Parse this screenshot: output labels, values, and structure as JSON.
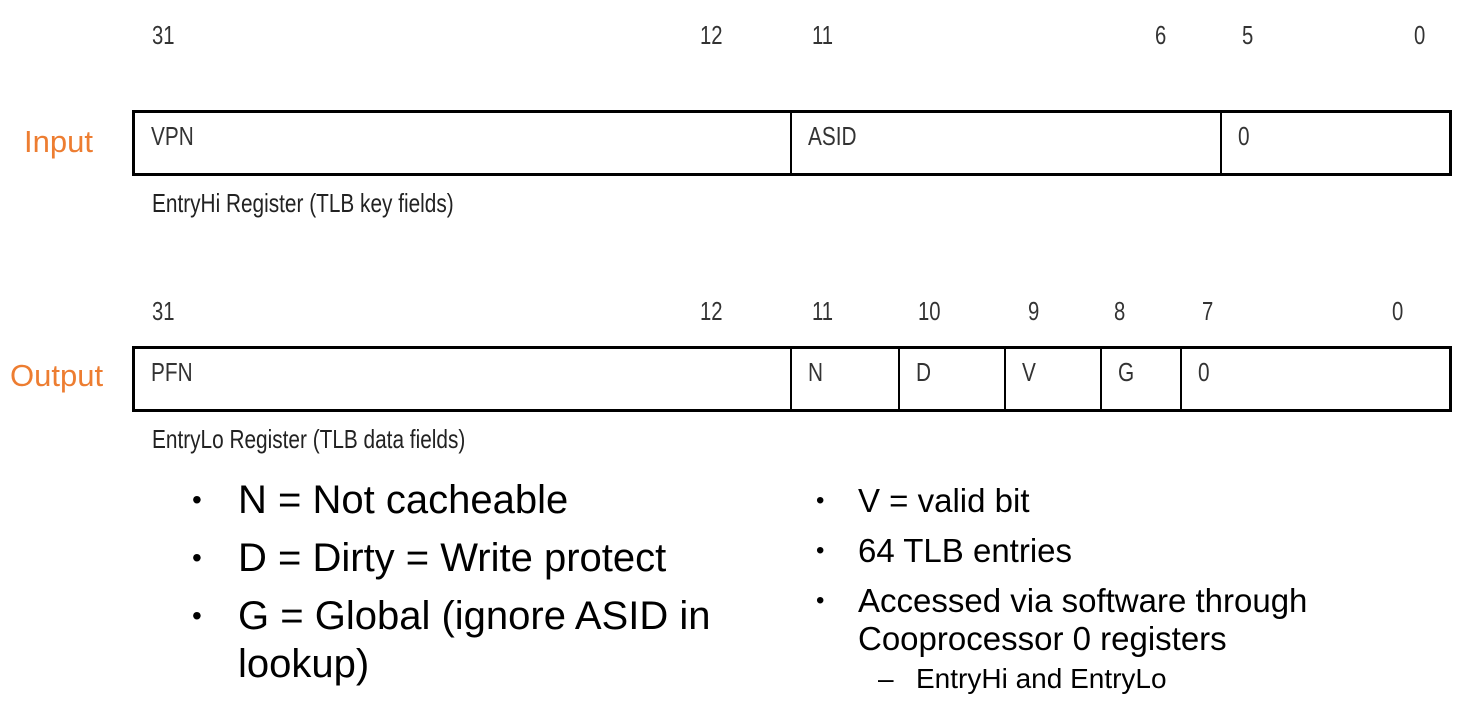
{
  "entryhi": {
    "side_label": "Input",
    "caption": "EntryHi Register (TLB key fields)",
    "bits": [
      "31",
      "12",
      "11",
      "6",
      "5",
      "0"
    ],
    "fields": [
      "VPN",
      "ASID",
      "0"
    ]
  },
  "entrylo": {
    "side_label": "Output",
    "caption": "EntryLo Register (TLB data fields)",
    "bits": [
      "31",
      "12",
      "11",
      "10",
      "9",
      "8",
      "7",
      "0"
    ],
    "fields": [
      "PFN",
      "N",
      "D",
      "V",
      "G",
      "0"
    ]
  },
  "bullets_left": [
    "N = Not cacheable",
    "D = Dirty = Write protect",
    "G = Global (ignore ASID in lookup)"
  ],
  "bullets_right": [
    "V = valid bit",
    "64 TLB entries",
    "Accessed via software through Cooprocessor 0 registers"
  ],
  "bullets_right_sub": [
    "EntryHi and EntryLo"
  ],
  "bullet_symbol": "•",
  "dash_symbol": "–"
}
